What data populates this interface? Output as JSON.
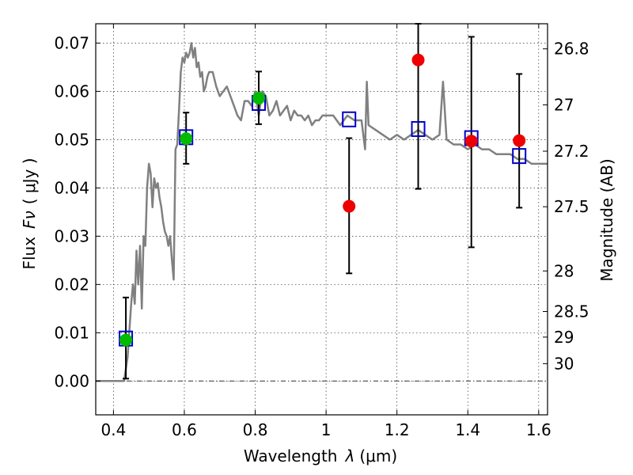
{
  "chart_data": {
    "type": "scatter",
    "xlabel": "Wavelength",
    "xlabel_symbol": "λ",
    "xlabel_unit": "(μm)",
    "ylabel": "Flux",
    "ylabel_symbol": "Fν",
    "ylabel_unit": "( μJy )",
    "y2label": "Magnitude (AB)",
    "xlim": [
      0.35,
      1.625
    ],
    "ylim": [
      -0.007,
      0.074
    ],
    "grid": true,
    "x_ticks": [
      0.4,
      0.6,
      0.8,
      1.0,
      1.2,
      1.4,
      1.6
    ],
    "x_tick_labels": [
      "0.4",
      "0.6",
      "0.8",
      "1",
      "1.2",
      "1.4",
      "1.6"
    ],
    "y_ticks": [
      0.0,
      0.01,
      0.02,
      0.03,
      0.04,
      0.05,
      0.06,
      0.07
    ],
    "y_tick_labels": [
      "0.00",
      "0.01",
      "0.02",
      "0.03",
      "0.04",
      "0.05",
      "0.06",
      "0.07"
    ],
    "y2_ticks": [
      {
        "label": "26.8",
        "flux": 0.0688
      },
      {
        "label": "27",
        "flux": 0.0572
      },
      {
        "label": "27.2",
        "flux": 0.0476
      },
      {
        "label": "27.5",
        "flux": 0.0361
      },
      {
        "label": "28",
        "flux": 0.0228
      },
      {
        "label": "28.5",
        "flux": 0.0144
      },
      {
        "label": "29",
        "flux": 0.0091
      },
      {
        "label": "30",
        "flux": 0.0036
      }
    ],
    "series": [
      {
        "style": "line",
        "color": "#808080",
        "x": [
          0.35,
          0.42,
          0.43,
          0.44,
          0.45,
          0.455,
          0.46,
          0.465,
          0.47,
          0.475,
          0.48,
          0.485,
          0.49,
          0.495,
          0.5,
          0.505,
          0.51,
          0.515,
          0.52,
          0.525,
          0.53,
          0.535,
          0.54,
          0.545,
          0.55,
          0.555,
          0.56,
          0.565,
          0.57,
          0.575,
          0.58,
          0.585,
          0.59,
          0.595,
          0.6,
          0.605,
          0.61,
          0.615,
          0.62,
          0.625,
          0.63,
          0.635,
          0.64,
          0.645,
          0.65,
          0.655,
          0.66,
          0.665,
          0.67,
          0.68,
          0.69,
          0.7,
          0.71,
          0.72,
          0.73,
          0.74,
          0.75,
          0.76,
          0.77,
          0.78,
          0.79,
          0.8,
          0.81,
          0.82,
          0.83,
          0.84,
          0.85,
          0.86,
          0.87,
          0.88,
          0.89,
          0.9,
          0.91,
          0.92,
          0.93,
          0.94,
          0.95,
          0.96,
          0.97,
          0.98,
          0.99,
          1.0,
          1.02,
          1.04,
          1.06,
          1.08,
          1.1,
          1.11,
          1.115,
          1.12,
          1.14,
          1.16,
          1.18,
          1.2,
          1.22,
          1.24,
          1.26,
          1.28,
          1.3,
          1.32,
          1.33,
          1.34,
          1.36,
          1.38,
          1.4,
          1.42,
          1.44,
          1.46,
          1.48,
          1.5,
          1.52,
          1.54,
          1.56,
          1.58,
          1.6,
          1.625
        ],
        "y": [
          0.0,
          0.0,
          0.0,
          0.005,
          0.016,
          0.02,
          0.016,
          0.027,
          0.02,
          0.028,
          0.015,
          0.03,
          0.028,
          0.04,
          0.045,
          0.043,
          0.036,
          0.042,
          0.04,
          0.041,
          0.038,
          0.036,
          0.033,
          0.031,
          0.03,
          0.028,
          0.03,
          0.025,
          0.021,
          0.048,
          0.049,
          0.056,
          0.064,
          0.067,
          0.066,
          0.068,
          0.067,
          0.068,
          0.07,
          0.067,
          0.069,
          0.065,
          0.066,
          0.063,
          0.064,
          0.06,
          0.061,
          0.063,
          0.064,
          0.064,
          0.061,
          0.059,
          0.06,
          0.061,
          0.059,
          0.057,
          0.055,
          0.054,
          0.058,
          0.058,
          0.057,
          0.06,
          0.055,
          0.06,
          0.059,
          0.055,
          0.056,
          0.058,
          0.055,
          0.056,
          0.057,
          0.054,
          0.056,
          0.055,
          0.055,
          0.054,
          0.055,
          0.053,
          0.054,
          0.054,
          0.055,
          0.055,
          0.055,
          0.053,
          0.055,
          0.054,
          0.054,
          0.048,
          0.062,
          0.053,
          0.052,
          0.051,
          0.05,
          0.051,
          0.05,
          0.051,
          0.052,
          0.051,
          0.05,
          0.051,
          0.062,
          0.05,
          0.049,
          0.049,
          0.048,
          0.049,
          0.048,
          0.048,
          0.047,
          0.047,
          0.047,
          0.046,
          0.046,
          0.045,
          0.045,
          0.045
        ]
      },
      {
        "style": "open-square",
        "color": "#0000cc",
        "x": [
          0.435,
          0.605,
          0.81,
          1.065,
          1.26,
          1.41,
          1.545
        ],
        "y": [
          0.0088,
          0.0505,
          0.0576,
          0.0542,
          0.0522,
          0.0503,
          0.0466
        ]
      },
      {
        "style": "filled-circle",
        "color": "#00bb00",
        "x": [
          0.435,
          0.605,
          0.81
        ],
        "y": [
          0.0085,
          0.0502,
          0.0586
        ],
        "yerr_low": [
          0.0005,
          0.045,
          0.0532
        ],
        "yerr_high": [
          0.0173,
          0.0556,
          0.0641
        ]
      },
      {
        "style": "filled-circle",
        "color": "#ee0000",
        "x": [
          1.065,
          1.26,
          1.41,
          1.545
        ],
        "y": [
          0.0362,
          0.0665,
          0.0497,
          0.0498
        ],
        "yerr_low": [
          0.0223,
          0.0398,
          0.0277,
          0.0359
        ],
        "yerr_high": [
          0.0503,
          0.074,
          0.0713,
          0.0636
        ]
      }
    ]
  }
}
